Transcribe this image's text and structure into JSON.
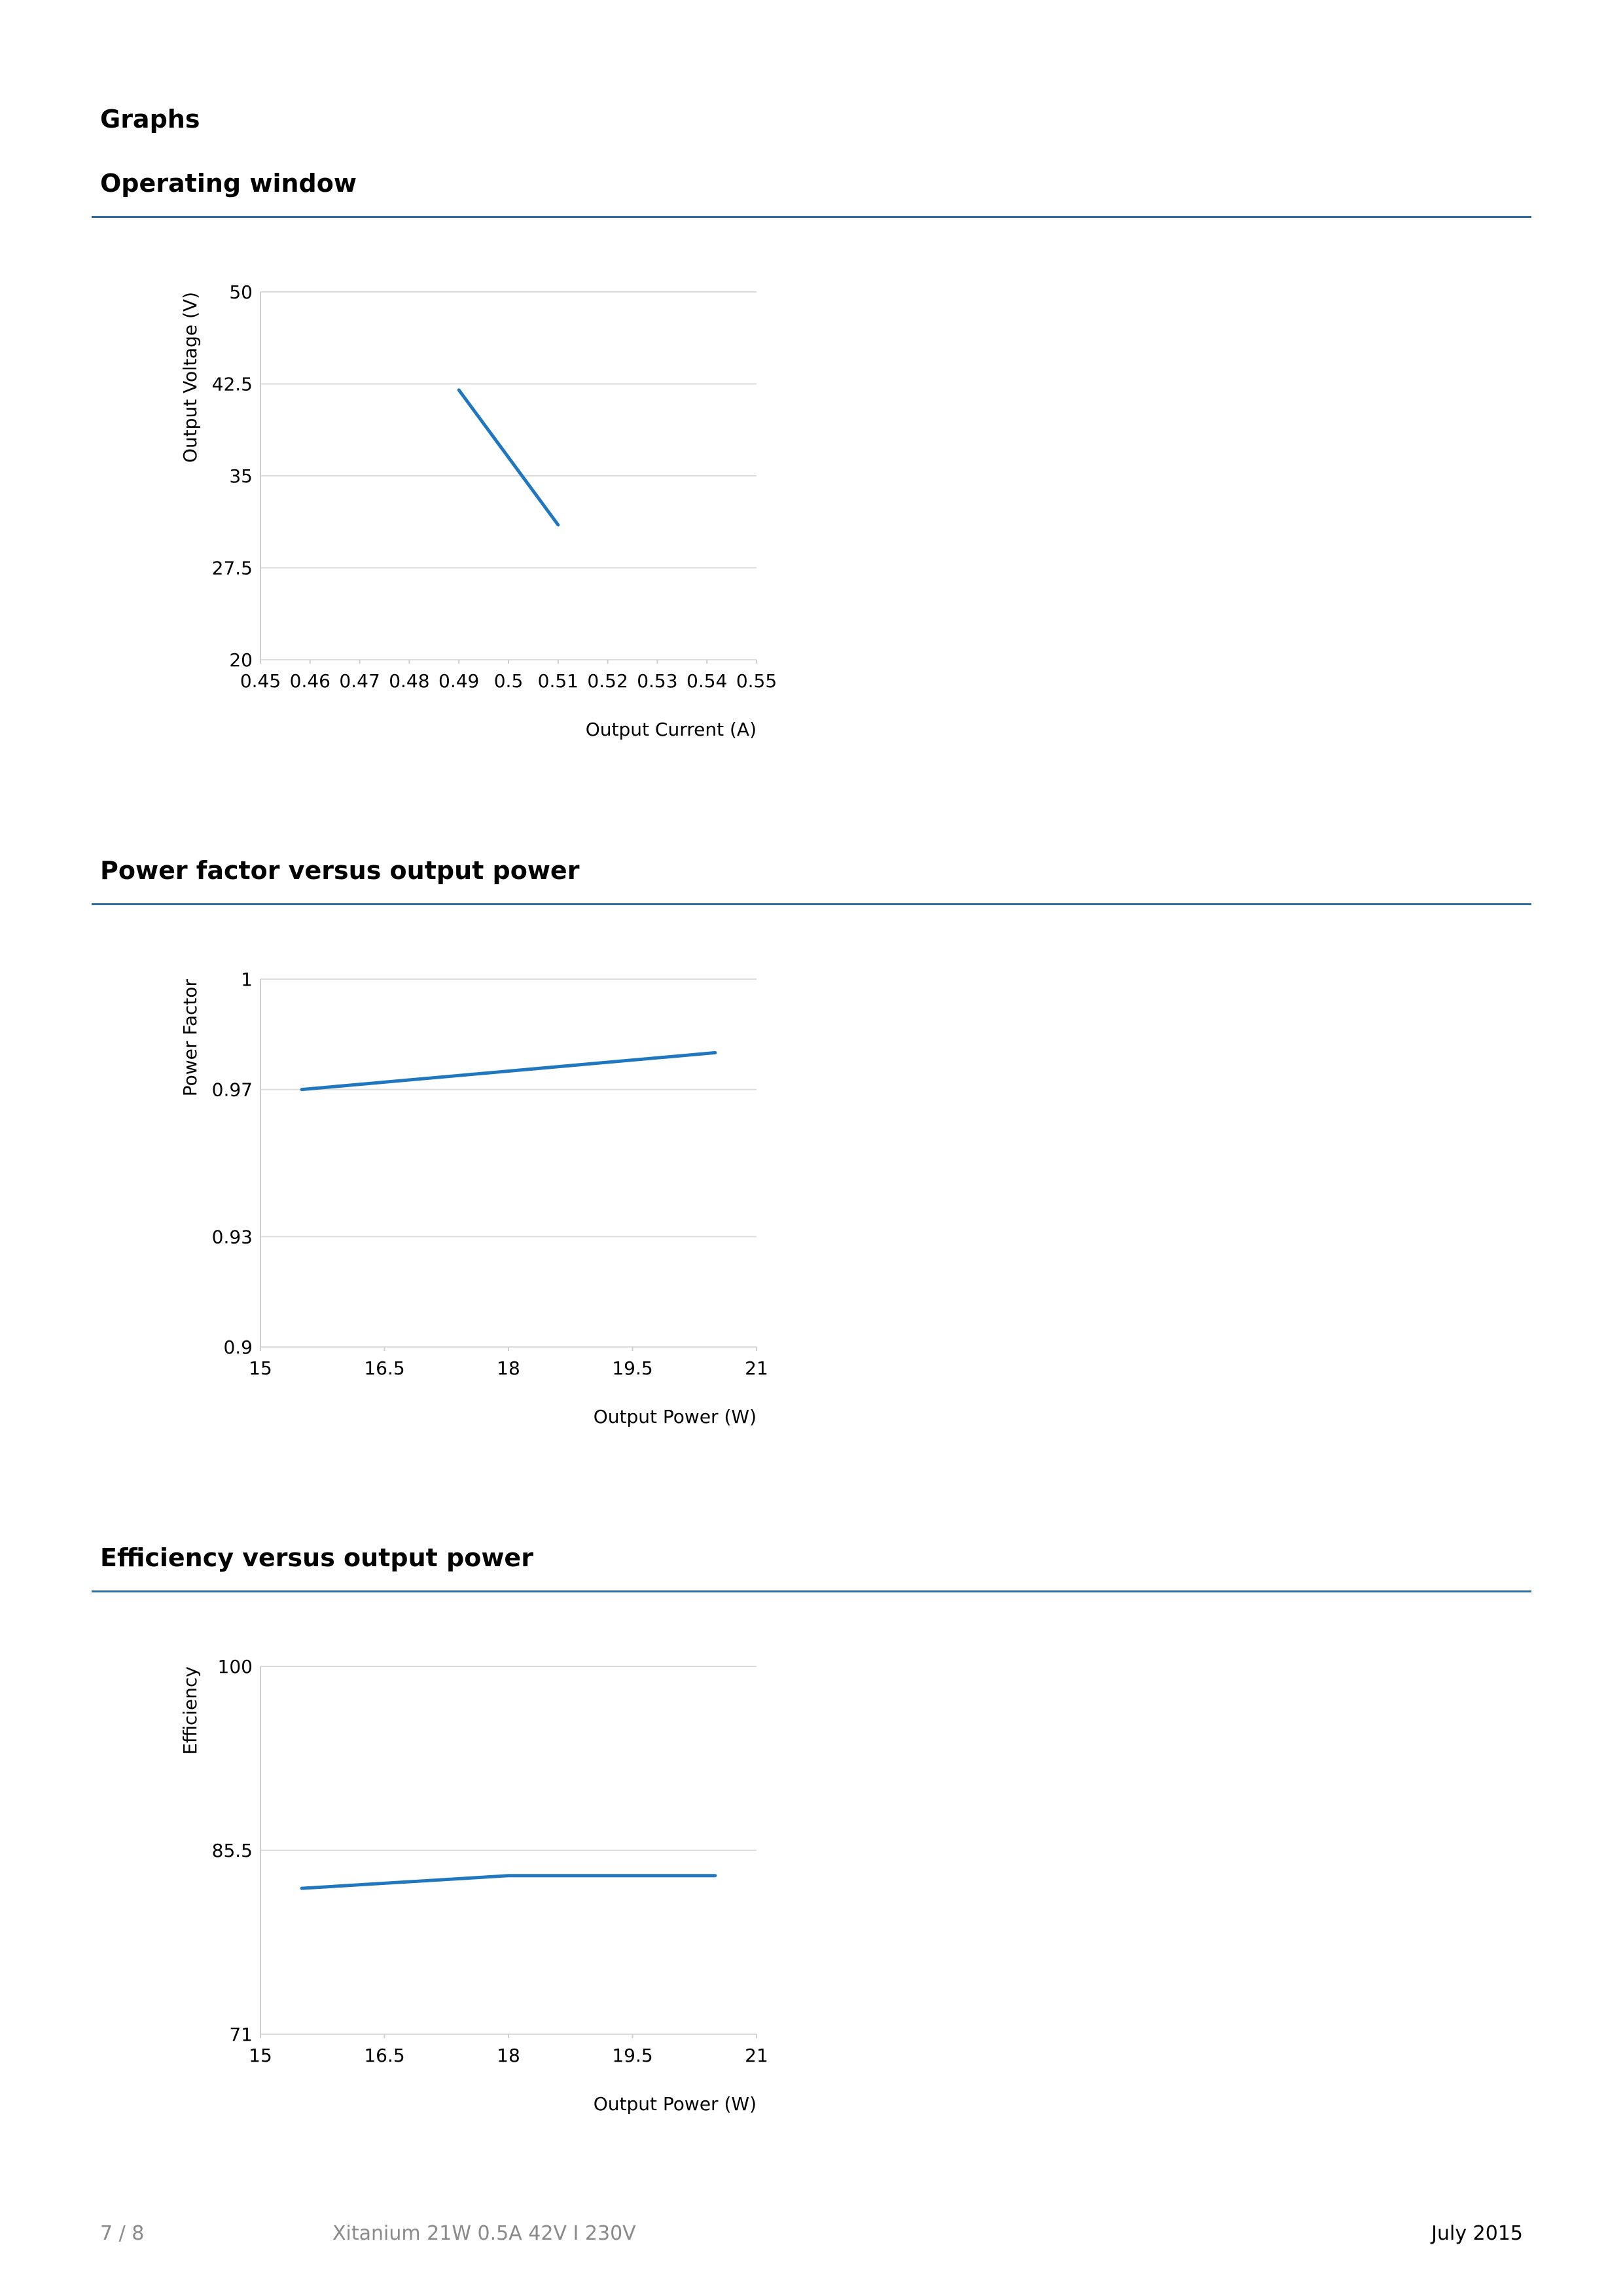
{
  "page": {
    "heading": "Graphs"
  },
  "sections": [
    {
      "title": "Operating window"
    },
    {
      "title": "Power factor versus output power"
    },
    {
      "title": "Efficiency versus output power"
    }
  ],
  "chart_data": [
    {
      "type": "line",
      "xlabel": "Output Current (A)",
      "ylabel": "Output Voltage (V)",
      "xlim": [
        0.45,
        0.55
      ],
      "ylim": [
        20,
        50
      ],
      "x_ticks": [
        "0.45",
        "0.46",
        "0.47",
        "0.48",
        "0.49",
        "0.5",
        "0.51",
        "0.52",
        "0.53",
        "0.54",
        "0.55"
      ],
      "y_ticks": [
        "20",
        "27.5",
        "35",
        "42.5",
        "50"
      ],
      "grid": true,
      "series": [
        {
          "x": [
            0.49,
            0.51
          ],
          "y": [
            42,
            31
          ],
          "color": "#1f77c0"
        }
      ]
    },
    {
      "type": "line",
      "xlabel": "Output Power (W)",
      "ylabel": "Power Factor",
      "xlim": [
        15,
        21
      ],
      "ylim": [
        0.9,
        1
      ],
      "x_ticks": [
        "15",
        "16.5",
        "18",
        "19.5",
        "21"
      ],
      "y_ticks": [
        "0.9",
        "0.93",
        "0.97",
        "1"
      ],
      "grid": true,
      "series": [
        {
          "x": [
            15.5,
            18,
            20.5
          ],
          "y": [
            0.97,
            0.975,
            0.98
          ],
          "color": "#1f77c0"
        }
      ]
    },
    {
      "type": "line",
      "xlabel": "Output Power (W)",
      "ylabel": "Efficiency",
      "xlim": [
        15,
        21
      ],
      "ylim": [
        71,
        100
      ],
      "x_ticks": [
        "15",
        "16.5",
        "18",
        "19.5",
        "21"
      ],
      "y_ticks": [
        "71",
        "85.5",
        "100"
      ],
      "grid": true,
      "series": [
        {
          "x": [
            15.5,
            18,
            20.5
          ],
          "y": [
            82.5,
            83.5,
            83.5
          ],
          "color": "#1f77c0"
        }
      ]
    }
  ],
  "footer": {
    "page_number": "7 / 8",
    "product": "Xitanium 21W 0.5A 42V I 230V",
    "date": "July 2015"
  }
}
